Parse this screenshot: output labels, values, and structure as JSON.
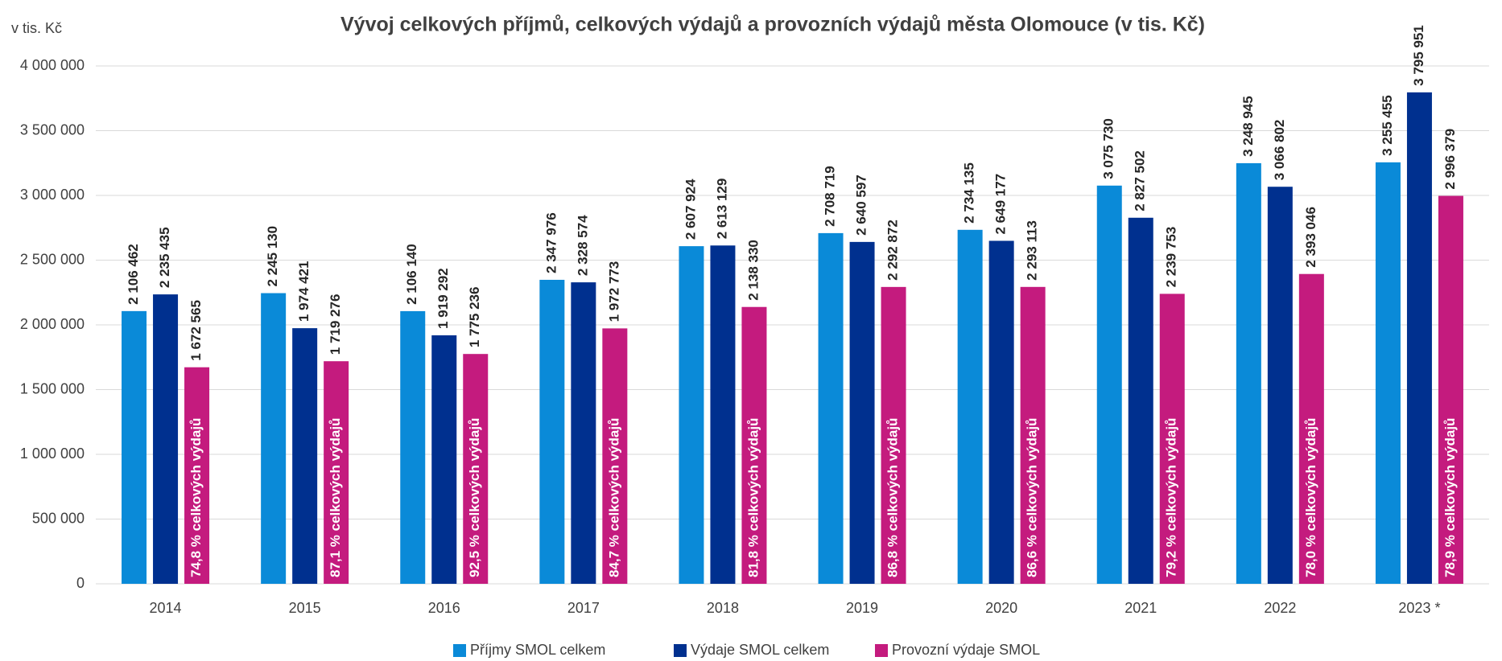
{
  "chart_data": {
    "type": "bar",
    "title": "Vývoj celkových příjmů, celkových výdajů a provozních výdajů města Olomouce (v tis. Kč)",
    "y_label": "v tis. Kč",
    "categories": [
      "2014",
      "2015",
      "2016",
      "2017",
      "2018",
      "2019",
      "2020",
      "2021",
      "2022",
      "2023 *"
    ],
    "series": [
      {
        "name": "Příjmy SMOL celkem",
        "color": "#0a8ad8",
        "values": [
          2106462,
          2245130,
          2106140,
          2347976,
          2607924,
          2708719,
          2734135,
          3075730,
          3248945,
          3255455
        ],
        "value_labels": [
          "2 106 462",
          "2 245 130",
          "2 106 140",
          "2 347 976",
          "2 607 924",
          "2 708 719",
          "2 734 135",
          "3 075 730",
          "3 248 945",
          "3 255 455"
        ]
      },
      {
        "name": "Výdaje SMOL celkem",
        "color": "#00308f",
        "values": [
          2235435,
          1974421,
          1919292,
          2328574,
          2613129,
          2640597,
          2649177,
          2827502,
          3066802,
          3795951
        ],
        "value_labels": [
          "2 235 435",
          "1 974 421",
          "1 919 292",
          "2 328 574",
          "2 613 129",
          "2 640 597",
          "2 649 177",
          "2 827 502",
          "3 066 802",
          "3 795 951"
        ]
      },
      {
        "name": "Provozní výdaje SMOL",
        "color": "#c41b7e",
        "values": [
          1672565,
          1719276,
          1775236,
          1972773,
          2138330,
          2292872,
          2293113,
          2239753,
          2393046,
          2996379
        ],
        "value_labels": [
          "1 672 565",
          "1 719 276",
          "1 775 236",
          "1 972 773",
          "2 138 330",
          "2 292 872",
          "2 293 113",
          "2 239 753",
          "2 393 046",
          "2 996 379"
        ],
        "annotations": [
          "74,8 % celkových výdajů",
          "87,1 % celkových výdajů",
          "92,5 % celkových výdajů",
          "84,7 % celkových výdajů",
          "81,8 % celkových výdajů",
          "86,8 % celkových výdajů",
          "86,6 % celkových výdajů",
          "79,2 % celkových výdajů",
          "78,0 % celkových výdajů",
          "78,9 % celkových výdajů"
        ]
      }
    ],
    "ylim": [
      0,
      4000000
    ],
    "yticks": [
      0,
      {
        "value": 500000,
        "label": "500 000"
      },
      {
        "value": 1000000,
        "label": "1 000 000"
      },
      {
        "value": 1500000,
        "label": "1 500 000"
      },
      {
        "value": 2000000,
        "label": "2 000 000"
      },
      {
        "value": 2500000,
        "label": "2 500 000"
      },
      {
        "value": 3000000,
        "label": "3 000 000"
      },
      {
        "value": 3500000,
        "label": "3 500 000"
      },
      {
        "value": 4000000,
        "label": "4 000 000"
      }
    ],
    "grid": true,
    "legend": "bottom"
  }
}
